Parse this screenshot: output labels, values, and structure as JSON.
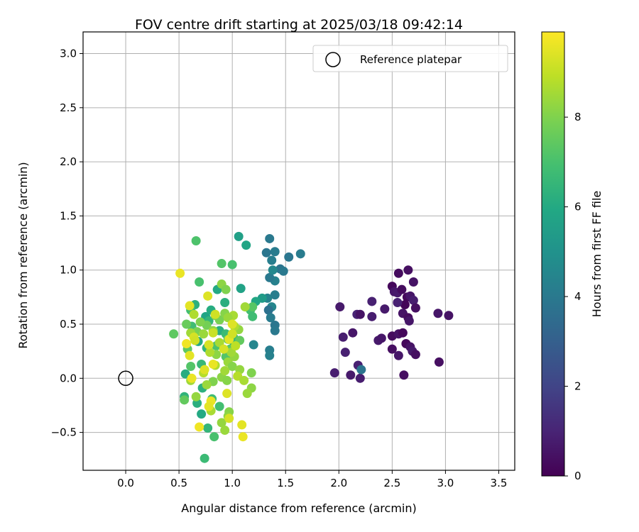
{
  "chart_data": {
    "type": "scatter",
    "title": "FOV centre drift starting at 2025/03/18 09:42:14",
    "xlabel": "Angular distance from reference (arcmin)",
    "ylabel": "Rotation from reference (arcmin)",
    "xlim": [
      -0.4,
      3.65
    ],
    "ylim": [
      -0.85,
      3.2
    ],
    "xticks": [
      0.0,
      0.5,
      1.0,
      1.5,
      2.0,
      2.5,
      3.0,
      3.5
    ],
    "xtick_labels": [
      "0.0",
      "0.5",
      "1.0",
      "1.5",
      "2.0",
      "2.5",
      "3.0",
      "3.5"
    ],
    "yticks": [
      -0.5,
      0.0,
      0.5,
      1.0,
      1.5,
      2.0,
      2.5,
      3.0
    ],
    "ytick_labels": [
      "−0.5",
      "0.0",
      "0.5",
      "1.0",
      "1.5",
      "2.0",
      "2.5",
      "3.0"
    ],
    "grid": true,
    "colormap": "viridis",
    "colorbar": {
      "label": "Hours from first FF file",
      "range": [
        0,
        9.9
      ],
      "ticks": [
        0,
        2,
        4,
        6,
        8
      ],
      "tick_labels": [
        "0",
        "2",
        "4",
        "6",
        "8"
      ]
    },
    "legend": {
      "position": "top-right",
      "entries": [
        "Reference platepar"
      ]
    },
    "reference_point": {
      "x": 0.0,
      "y": 0.0
    },
    "points": [
      {
        "x": 2.5,
        "y": 0.85,
        "c": 0.2
      },
      {
        "x": 2.56,
        "y": 0.97,
        "c": 0.3
      },
      {
        "x": 2.65,
        "y": 1.0,
        "c": 0.4
      },
      {
        "x": 2.7,
        "y": 0.89,
        "c": 0.5
      },
      {
        "x": 2.52,
        "y": 0.8,
        "c": 0.6
      },
      {
        "x": 2.55,
        "y": 0.79,
        "c": 0.7
      },
      {
        "x": 2.59,
        "y": 0.82,
        "c": 0.3
      },
      {
        "x": 2.64,
        "y": 0.75,
        "c": 0.2
      },
      {
        "x": 2.67,
        "y": 0.76,
        "c": 0.6
      },
      {
        "x": 2.7,
        "y": 0.72,
        "c": 0.8
      },
      {
        "x": 2.72,
        "y": 0.65,
        "c": 0.4
      },
      {
        "x": 2.62,
        "y": 0.68,
        "c": 0.1
      },
      {
        "x": 2.55,
        "y": 0.7,
        "c": 0.9
      },
      {
        "x": 2.43,
        "y": 0.64,
        "c": 0.7
      },
      {
        "x": 2.6,
        "y": 0.6,
        "c": 0.5
      },
      {
        "x": 2.65,
        "y": 0.56,
        "c": 0.3
      },
      {
        "x": 2.66,
        "y": 0.53,
        "c": 0.6
      },
      {
        "x": 2.31,
        "y": 0.71,
        "c": 0.9
      },
      {
        "x": 2.31,
        "y": 0.57,
        "c": 0.8
      },
      {
        "x": 2.17,
        "y": 0.59,
        "c": 1.0
      },
      {
        "x": 2.2,
        "y": 0.59,
        "c": 0.5
      },
      {
        "x": 2.01,
        "y": 0.66,
        "c": 0.7
      },
      {
        "x": 2.04,
        "y": 0.38,
        "c": 0.8
      },
      {
        "x": 2.13,
        "y": 0.42,
        "c": 0.6
      },
      {
        "x": 2.06,
        "y": 0.24,
        "c": 0.9
      },
      {
        "x": 2.37,
        "y": 0.35,
        "c": 0.7
      },
      {
        "x": 2.4,
        "y": 0.37,
        "c": 0.6
      },
      {
        "x": 2.5,
        "y": 0.39,
        "c": 0.3
      },
      {
        "x": 2.56,
        "y": 0.41,
        "c": 0.5
      },
      {
        "x": 2.6,
        "y": 0.42,
        "c": 0.2
      },
      {
        "x": 2.5,
        "y": 0.27,
        "c": 0.4
      },
      {
        "x": 2.56,
        "y": 0.21,
        "c": 0.6
      },
      {
        "x": 2.63,
        "y": 0.32,
        "c": 0.2
      },
      {
        "x": 2.67,
        "y": 0.29,
        "c": 0.5
      },
      {
        "x": 2.69,
        "y": 0.25,
        "c": 0.7
      },
      {
        "x": 2.72,
        "y": 0.22,
        "c": 0.4
      },
      {
        "x": 2.93,
        "y": 0.6,
        "c": 0.6
      },
      {
        "x": 3.03,
        "y": 0.58,
        "c": 0.5
      },
      {
        "x": 2.94,
        "y": 0.15,
        "c": 0.4
      },
      {
        "x": 1.96,
        "y": 0.05,
        "c": 0.8
      },
      {
        "x": 2.11,
        "y": 0.03,
        "c": 0.7
      },
      {
        "x": 2.18,
        "y": 0.12,
        "c": 0.9
      },
      {
        "x": 2.2,
        "y": 0.0,
        "c": 0.8
      },
      {
        "x": 2.61,
        "y": 0.03,
        "c": 0.4
      },
      {
        "x": 2.21,
        "y": 0.08,
        "c": 3.8
      },
      {
        "x": 1.35,
        "y": 1.29,
        "c": 4.0
      },
      {
        "x": 1.4,
        "y": 1.17,
        "c": 4.1
      },
      {
        "x": 1.32,
        "y": 1.16,
        "c": 3.9
      },
      {
        "x": 1.37,
        "y": 1.09,
        "c": 4.2
      },
      {
        "x": 1.45,
        "y": 1.01,
        "c": 3.8
      },
      {
        "x": 1.48,
        "y": 0.99,
        "c": 4.0
      },
      {
        "x": 1.53,
        "y": 1.12,
        "c": 3.9
      },
      {
        "x": 1.64,
        "y": 1.15,
        "c": 4.1
      },
      {
        "x": 1.4,
        "y": 0.9,
        "c": 4.3
      },
      {
        "x": 1.35,
        "y": 0.93,
        "c": 4.0
      },
      {
        "x": 1.4,
        "y": 0.77,
        "c": 4.2
      },
      {
        "x": 1.33,
        "y": 0.74,
        "c": 4.4
      },
      {
        "x": 1.37,
        "y": 0.66,
        "c": 4.5
      },
      {
        "x": 1.34,
        "y": 0.63,
        "c": 3.7
      },
      {
        "x": 1.36,
        "y": 0.56,
        "c": 4.1
      },
      {
        "x": 1.4,
        "y": 0.49,
        "c": 3.9
      },
      {
        "x": 1.4,
        "y": 0.44,
        "c": 4.0
      },
      {
        "x": 1.35,
        "y": 0.26,
        "c": 4.2
      },
      {
        "x": 1.35,
        "y": 0.21,
        "c": 4.3
      },
      {
        "x": 1.2,
        "y": 0.31,
        "c": 4.5
      },
      {
        "x": 1.38,
        "y": 1.0,
        "c": 4.6
      },
      {
        "x": 1.06,
        "y": 1.31,
        "c": 5.6
      },
      {
        "x": 1.13,
        "y": 1.23,
        "c": 5.8
      },
      {
        "x": 1.28,
        "y": 0.74,
        "c": 5.4
      },
      {
        "x": 1.22,
        "y": 0.71,
        "c": 5.9
      },
      {
        "x": 1.08,
        "y": 0.83,
        "c": 5.7
      },
      {
        "x": 0.86,
        "y": 0.82,
        "c": 6.0
      },
      {
        "x": 0.93,
        "y": 0.7,
        "c": 6.2
      },
      {
        "x": 0.75,
        "y": 0.57,
        "c": 5.8
      },
      {
        "x": 0.8,
        "y": 0.63,
        "c": 6.1
      },
      {
        "x": 0.65,
        "y": 0.68,
        "c": 6.3
      },
      {
        "x": 0.78,
        "y": 0.53,
        "c": 6.5
      },
      {
        "x": 1.01,
        "y": 0.34,
        "c": 6.0
      },
      {
        "x": 0.88,
        "y": 0.44,
        "c": 6.2
      },
      {
        "x": 0.68,
        "y": 0.34,
        "c": 5.9
      },
      {
        "x": 0.76,
        "y": 0.28,
        "c": 6.4
      },
      {
        "x": 0.71,
        "y": 0.13,
        "c": 6.6
      },
      {
        "x": 0.56,
        "y": 0.04,
        "c": 6.1
      },
      {
        "x": 0.72,
        "y": -0.09,
        "c": 6.3
      },
      {
        "x": 0.55,
        "y": -0.17,
        "c": 6.4
      },
      {
        "x": 0.67,
        "y": -0.23,
        "c": 6.2
      },
      {
        "x": 0.71,
        "y": -0.33,
        "c": 6.0
      },
      {
        "x": 0.77,
        "y": -0.46,
        "c": 6.5
      },
      {
        "x": 0.81,
        "y": -0.19,
        "c": 6.8
      },
      {
        "x": 0.88,
        "y": -0.26,
        "c": 6.9
      },
      {
        "x": 0.74,
        "y": -0.74,
        "c": 6.7
      },
      {
        "x": 0.83,
        "y": -0.54,
        "c": 7.0
      },
      {
        "x": 1.01,
        "y": 0.38,
        "c": 6.6
      },
      {
        "x": 0.94,
        "y": 0.41,
        "c": 6.7
      },
      {
        "x": 0.62,
        "y": 0.48,
        "c": 6.8
      },
      {
        "x": 0.61,
        "y": 0.63,
        "c": 6.9
      },
      {
        "x": 0.69,
        "y": 0.89,
        "c": 7.0
      },
      {
        "x": 0.66,
        "y": 1.27,
        "c": 7.1
      },
      {
        "x": 0.9,
        "y": 1.06,
        "c": 7.2
      },
      {
        "x": 1.0,
        "y": 1.05,
        "c": 7.0
      },
      {
        "x": 1.17,
        "y": 0.63,
        "c": 6.9
      },
      {
        "x": 1.19,
        "y": 0.57,
        "c": 6.8
      },
      {
        "x": 1.19,
        "y": 0.66,
        "c": 7.3
      },
      {
        "x": 0.58,
        "y": 0.27,
        "c": 7.4
      },
      {
        "x": 0.61,
        "y": 0.11,
        "c": 7.2
      },
      {
        "x": 0.55,
        "y": -0.2,
        "c": 7.5
      },
      {
        "x": 0.45,
        "y": 0.41,
        "c": 7.4
      },
      {
        "x": 0.57,
        "y": 0.5,
        "c": 7.6
      },
      {
        "x": 0.98,
        "y": 0.27,
        "c": 7.3
      },
      {
        "x": 0.94,
        "y": 0.2,
        "c": 7.2
      },
      {
        "x": 1.07,
        "y": 0.35,
        "c": 7.5
      },
      {
        "x": 0.96,
        "y": 0.36,
        "c": 7.6
      },
      {
        "x": 0.85,
        "y": 0.3,
        "c": 7.1
      },
      {
        "x": 0.76,
        "y": 0.49,
        "c": 7.8
      },
      {
        "x": 0.84,
        "y": 0.58,
        "c": 8.0
      },
      {
        "x": 0.88,
        "y": 0.54,
        "c": 7.9
      },
      {
        "x": 0.93,
        "y": 0.6,
        "c": 8.1
      },
      {
        "x": 0.9,
        "y": 0.87,
        "c": 8.2
      },
      {
        "x": 0.94,
        "y": 0.82,
        "c": 8.0
      },
      {
        "x": 0.82,
        "y": 0.44,
        "c": 8.3
      },
      {
        "x": 0.67,
        "y": 0.43,
        "c": 7.9
      },
      {
        "x": 0.7,
        "y": 0.52,
        "c": 8.0
      },
      {
        "x": 0.85,
        "y": 0.22,
        "c": 8.2
      },
      {
        "x": 0.96,
        "y": 0.15,
        "c": 8.4
      },
      {
        "x": 1.0,
        "y": 0.11,
        "c": 8.1
      },
      {
        "x": 1.02,
        "y": 0.2,
        "c": 8.3
      },
      {
        "x": 0.9,
        "y": 0.01,
        "c": 8.2
      },
      {
        "x": 0.82,
        "y": -0.03,
        "c": 8.0
      },
      {
        "x": 0.76,
        "y": -0.06,
        "c": 8.4
      },
      {
        "x": 0.95,
        "y": -0.02,
        "c": 8.1
      },
      {
        "x": 1.07,
        "y": 0.08,
        "c": 8.3
      },
      {
        "x": 1.18,
        "y": 0.05,
        "c": 8.0
      },
      {
        "x": 1.18,
        "y": -0.09,
        "c": 8.2
      },
      {
        "x": 1.14,
        "y": -0.14,
        "c": 8.4
      },
      {
        "x": 0.97,
        "y": -0.31,
        "c": 8.1
      },
      {
        "x": 0.9,
        "y": -0.41,
        "c": 8.3
      },
      {
        "x": 0.96,
        "y": -0.35,
        "c": 8.2
      },
      {
        "x": 0.93,
        "y": -0.48,
        "c": 8.4
      },
      {
        "x": 0.61,
        "y": -0.02,
        "c": 8.5
      },
      {
        "x": 0.66,
        "y": -0.17,
        "c": 8.3
      },
      {
        "x": 0.8,
        "y": -0.3,
        "c": 8.6
      },
      {
        "x": 0.61,
        "y": 0.42,
        "c": 8.5
      },
      {
        "x": 0.64,
        "y": 0.59,
        "c": 8.7
      },
      {
        "x": 0.73,
        "y": 0.41,
        "c": 8.4
      },
      {
        "x": 1.06,
        "y": 0.45,
        "c": 8.3
      },
      {
        "x": 1.01,
        "y": 0.58,
        "c": 8.6
      },
      {
        "x": 1.12,
        "y": 0.66,
        "c": 8.5
      },
      {
        "x": 1.02,
        "y": 0.48,
        "c": 8.7
      },
      {
        "x": 0.96,
        "y": 0.56,
        "c": 8.4
      },
      {
        "x": 0.88,
        "y": 0.33,
        "c": 8.6
      },
      {
        "x": 0.79,
        "y": 0.24,
        "c": 8.7
      },
      {
        "x": 0.93,
        "y": 0.07,
        "c": 8.5
      },
      {
        "x": 1.05,
        "y": 0.02,
        "c": 8.8
      },
      {
        "x": 1.11,
        "y": -0.02,
        "c": 8.6
      },
      {
        "x": 0.73,
        "y": 0.05,
        "c": 8.8
      },
      {
        "x": 0.84,
        "y": 0.12,
        "c": 8.7
      },
      {
        "x": 0.99,
        "y": 0.24,
        "c": 8.5
      },
      {
        "x": 1.03,
        "y": 0.3,
        "c": 8.9
      },
      {
        "x": 0.51,
        "y": 0.97,
        "c": 9.6
      },
      {
        "x": 0.77,
        "y": 0.76,
        "c": 9.4
      },
      {
        "x": 0.6,
        "y": 0.67,
        "c": 9.5
      },
      {
        "x": 0.64,
        "y": 0.38,
        "c": 9.3
      },
      {
        "x": 0.57,
        "y": 0.32,
        "c": 9.7
      },
      {
        "x": 0.65,
        "y": 0.35,
        "c": 9.2
      },
      {
        "x": 0.6,
        "y": 0.21,
        "c": 9.5
      },
      {
        "x": 0.62,
        "y": 0.0,
        "c": 9.6
      },
      {
        "x": 0.74,
        "y": 0.08,
        "c": 9.4
      },
      {
        "x": 0.78,
        "y": 0.31,
        "c": 9.3
      },
      {
        "x": 0.82,
        "y": 0.42,
        "c": 9.1
      },
      {
        "x": 0.84,
        "y": 0.59,
        "c": 9.2
      },
      {
        "x": 0.82,
        "y": 0.13,
        "c": 9.6
      },
      {
        "x": 0.92,
        "y": 0.27,
        "c": 9.3
      },
      {
        "x": 0.97,
        "y": 0.36,
        "c": 9.5
      },
      {
        "x": 1.0,
        "y": 0.5,
        "c": 9.4
      },
      {
        "x": 1.0,
        "y": 0.41,
        "c": 9.2
      },
      {
        "x": 0.95,
        "y": -0.14,
        "c": 9.4
      },
      {
        "x": 0.8,
        "y": -0.21,
        "c": 9.6
      },
      {
        "x": 0.78,
        "y": -0.26,
        "c": 9.5
      },
      {
        "x": 0.69,
        "y": -0.45,
        "c": 9.7
      },
      {
        "x": 0.97,
        "y": -0.37,
        "c": 9.3
      },
      {
        "x": 1.09,
        "y": -0.43,
        "c": 9.5
      },
      {
        "x": 1.1,
        "y": -0.54,
        "c": 9.6
      }
    ]
  }
}
